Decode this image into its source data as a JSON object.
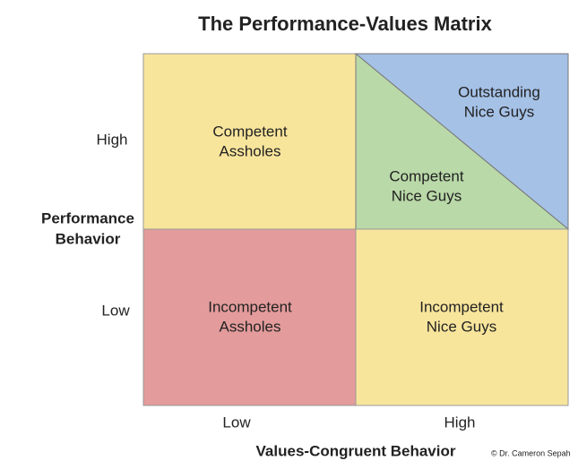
{
  "title": "The Performance-Values Matrix",
  "y_axis": {
    "label_lines": [
      "Performance",
      "Behavior"
    ],
    "ticks": [
      "High",
      "Low"
    ]
  },
  "x_axis": {
    "label": "Values-Congruent Behavior",
    "ticks": [
      "Low",
      "High"
    ]
  },
  "cells": [
    {
      "lines": [
        "Competent",
        "Assholes"
      ]
    },
    {
      "lines": [
        "Outstanding",
        "Nice Guys"
      ]
    },
    {
      "lines": [
        "Competent",
        "Nice Guys"
      ]
    },
    {
      "lines": [
        "Incompetent",
        "Assholes"
      ]
    },
    {
      "lines": [
        "Incompetent",
        "Nice Guys"
      ]
    }
  ],
  "credit": "© Dr. Cameron Sepah"
}
